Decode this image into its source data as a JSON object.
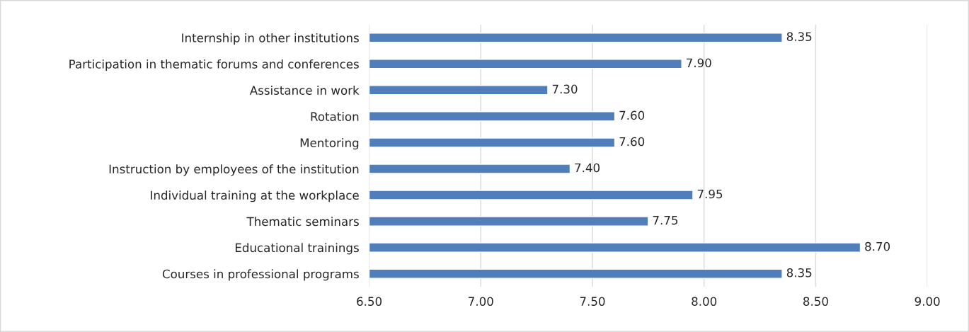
{
  "chart_data": {
    "type": "bar",
    "orientation": "horizontal",
    "categories": [
      "Internship in other institutions",
      "Participation in thematic forums and conferences",
      "Assistance in work",
      "Rotation",
      "Mentoring",
      "Instruction by employees of the institution",
      "Individual training at the workplace",
      "Thematic seminars",
      "Educational trainings",
      "Courses in professional programs"
    ],
    "values": [
      8.35,
      7.9,
      7.3,
      7.6,
      7.6,
      7.4,
      7.95,
      7.75,
      8.7,
      8.35
    ],
    "value_labels": [
      "8.35",
      "7.90",
      "7.30",
      "7.60",
      "7.60",
      "7.40",
      "7.95",
      "7.75",
      "8.70",
      "8.35"
    ],
    "color": "#4f7ebb",
    "xlim": [
      6.5,
      9.0
    ],
    "xticks": [
      {
        "value": 6.5,
        "label": "6.50"
      },
      {
        "value": 7.0,
        "label": "7.00"
      },
      {
        "value": 7.5,
        "label": "7.50"
      },
      {
        "value": 8.0,
        "label": "8.00"
      },
      {
        "value": 8.5,
        "label": "8.50"
      },
      {
        "value": 9.0,
        "label": "9.00"
      }
    ],
    "grid": "x"
  }
}
